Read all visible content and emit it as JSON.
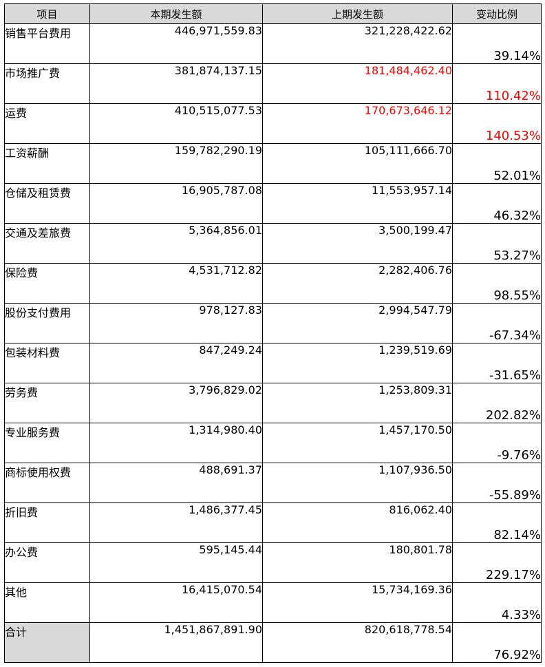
{
  "table": {
    "headers": [
      "项目",
      "本期发生额",
      "上期发生额",
      "变动比例"
    ],
    "rows": [
      {
        "item": "销售平台费用",
        "current": "446,971,559.83",
        "previous": "321,228,422.62",
        "change": "39.14%",
        "previous_red": false,
        "change_red": false
      },
      {
        "item": "市场推广费",
        "current": "381,874,137.15",
        "previous": "181,484,462.40",
        "change": "110.42%",
        "previous_red": true,
        "change_red": true
      },
      {
        "item": "运费",
        "current": "410,515,077.53",
        "previous": "170,673,646.12",
        "change": "140.53%",
        "previous_red": true,
        "change_red": true
      },
      {
        "item": "工资薪酬",
        "current": "159,782,290.19",
        "previous": "105,111,666.70",
        "change": "52.01%",
        "previous_red": false,
        "change_red": false
      },
      {
        "item": "仓储及租赁费",
        "current": "16,905,787.08",
        "previous": "11,553,957.14",
        "change": "46.32%",
        "previous_red": false,
        "change_red": false
      },
      {
        "item": "交通及差旅费",
        "current": "5,364,856.01",
        "previous": "3,500,199.47",
        "change": "53.27%",
        "previous_red": false,
        "change_red": false
      },
      {
        "item": "保险费",
        "current": "4,531,712.82",
        "previous": "2,282,406.76",
        "change": "98.55%",
        "previous_red": false,
        "change_red": false
      },
      {
        "item": "股份支付费用",
        "current": "978,127.83",
        "previous": "2,994,547.79",
        "change": "-67.34%",
        "previous_red": false,
        "change_red": false
      },
      {
        "item": "包装材料费",
        "current": "847,249.24",
        "previous": "1,239,519.69",
        "change": "-31.65%",
        "previous_red": false,
        "change_red": false
      },
      {
        "item": "劳务费",
        "current": "3,796,829.02",
        "previous": "1,253,809.31",
        "change": "202.82%",
        "previous_red": false,
        "change_red": false
      },
      {
        "item": "专业服务费",
        "current": "1,314,980.40",
        "previous": "1,457,170.50",
        "change": "-9.76%",
        "previous_red": false,
        "change_red": false
      },
      {
        "item": "商标使用权费",
        "current": "488,691.37",
        "previous": "1,107,936.50",
        "change": "-55.89%",
        "previous_red": false,
        "change_red": false
      },
      {
        "item": "折旧费",
        "current": "1,486,377.45",
        "previous": "816,062.40",
        "change": "82.14%",
        "previous_red": false,
        "change_red": false
      },
      {
        "item": "办公费",
        "current": "595,145.44",
        "previous": "180,801.78",
        "change": "229.17%",
        "previous_red": false,
        "change_red": false
      },
      {
        "item": "其他",
        "current": "16,415,070.54",
        "previous": "15,734,169.36",
        "change": "4.33%",
        "previous_red": false,
        "change_red": false
      }
    ],
    "total": {
      "item": "合计",
      "current": "1,451,867,891.90",
      "previous": "820,618,778.54",
      "change": "76.92%"
    }
  },
  "colors": {
    "header_bg": "#d9d9d9",
    "highlight_red": "#ff0000",
    "border": "#000000"
  }
}
